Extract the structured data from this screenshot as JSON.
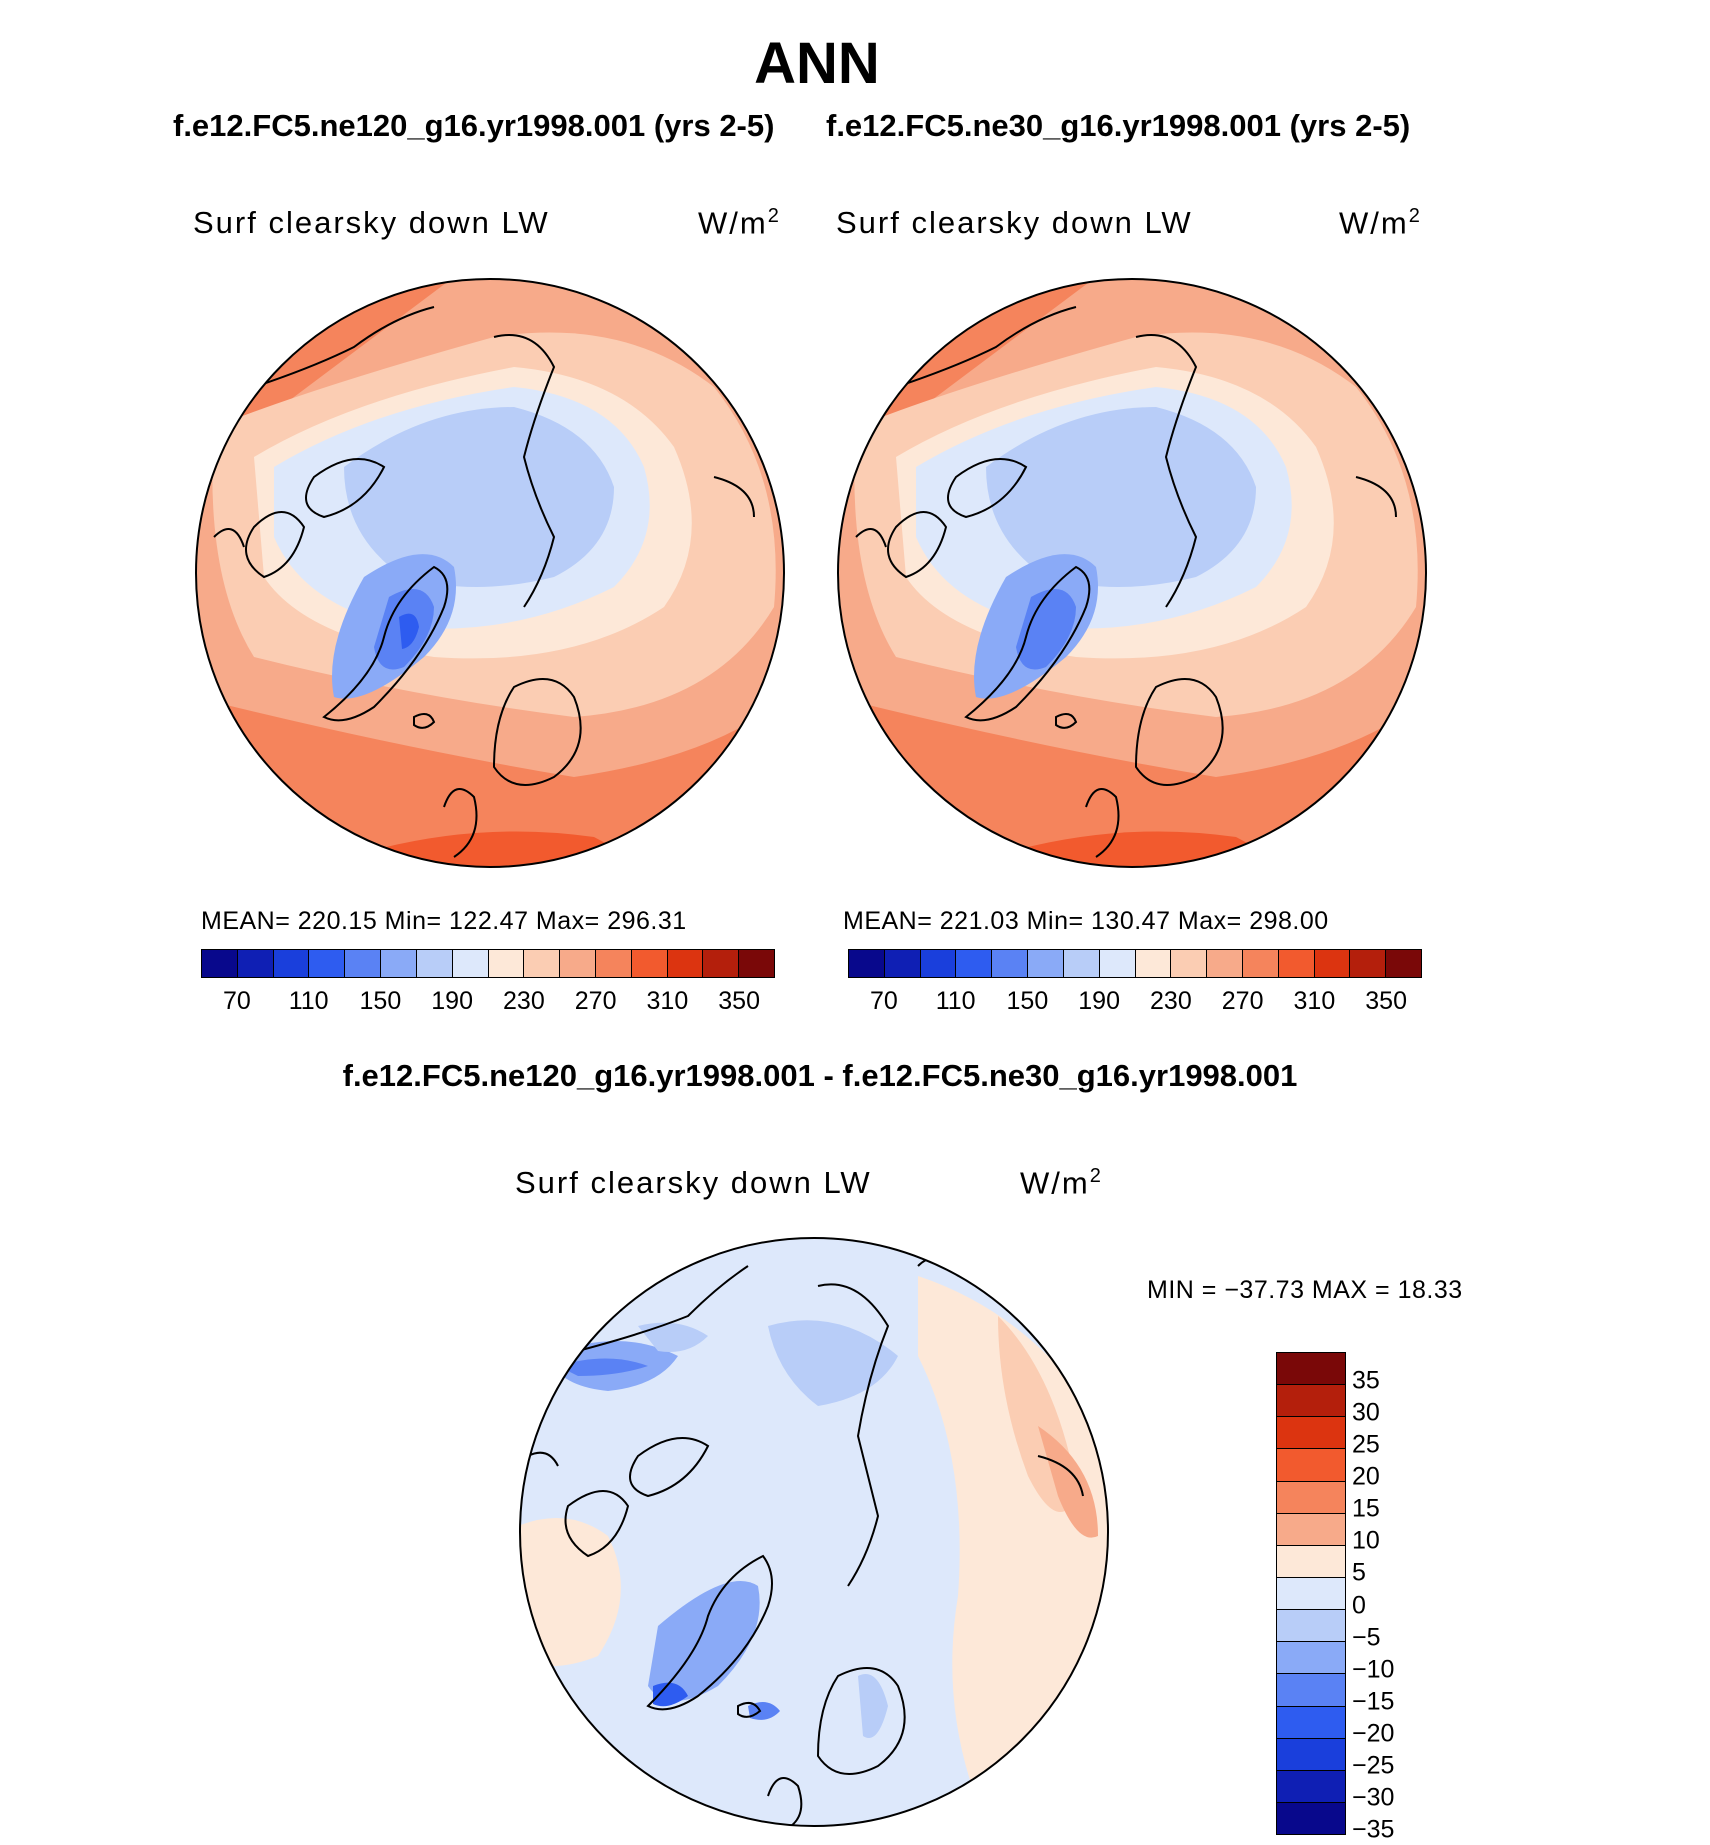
{
  "page": {
    "title": "ANN",
    "case_left": "f.e12.FC5.ne120_g16.yr1998.001 (yrs 2-5)",
    "case_right": "f.e12.FC5.ne30_g16.yr1998.001 (yrs 2-5)",
    "diff_title": "f.e12.FC5.ne120_g16.yr1998.001 - f.e12.FC5.ne30_g16.yr1998.001"
  },
  "panels": [
    {
      "variable": "Surf clearsky down LW",
      "units_base": "W/m",
      "units_exp": "2",
      "stats": "MEAN= 220.15   Min= 122.47   Max= 296.31"
    },
    {
      "variable": "Surf clearsky down LW",
      "units_base": "W/m",
      "units_exp": "2",
      "stats": "MEAN= 221.03   Min= 130.47   Max= 298.00"
    }
  ],
  "diff_panel": {
    "variable": "Surf clearsky down LW",
    "units_base": "W/m",
    "units_exp": "2",
    "stats": "MIN = −37.73 MAX =   18.33"
  },
  "colorbar_abs": {
    "colors": [
      "#08088c",
      "#0f1fb4",
      "#1a3fdc",
      "#2e5cf0",
      "#5a82f4",
      "#8aaaf7",
      "#b8cdf8",
      "#dde8fb",
      "#fde8d8",
      "#fbcdb3",
      "#f7aa8a",
      "#f5845c",
      "#f25a2e",
      "#dc3410",
      "#b41f0c",
      "#7a0808"
    ],
    "labels": [
      "70",
      "110",
      "150",
      "190",
      "230",
      "270",
      "310",
      "350"
    ]
  },
  "colorbar_diff": {
    "colors": [
      "#7a0808",
      "#b41f0c",
      "#dc3410",
      "#f25a2e",
      "#f5845c",
      "#f7aa8a",
      "#fde8d8",
      "#dde8fb",
      "#b8cdf8",
      "#8aaaf7",
      "#5a82f4",
      "#2e5cf0",
      "#1a3fdc",
      "#0f1fb4",
      "#08088c"
    ],
    "labels": [
      "35",
      "30",
      "25",
      "20",
      "15",
      "10",
      "5",
      "0",
      "−5",
      "−10",
      "−15",
      "−20",
      "−25",
      "−30",
      "−35"
    ]
  },
  "map_colors": {
    "ocean_warm": "#f7aa8a",
    "deep_warm": "#f5845c",
    "hot": "#f25a2e",
    "mild": "#fbcdb3",
    "pale": "#fde8d8",
    "cool": "#dde8fb",
    "cold": "#b8cdf8",
    "colder": "#8aaaf7",
    "coldest": "#5a82f4",
    "greenland_core": "#2e5cf0"
  }
}
